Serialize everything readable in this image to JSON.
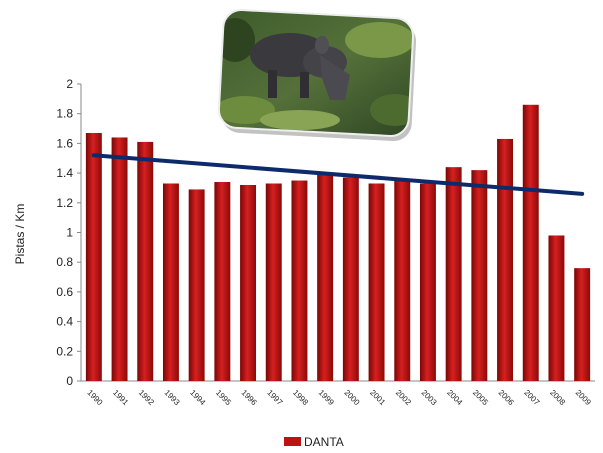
{
  "chart_data": {
    "type": "bar",
    "title": "",
    "xlabel": "",
    "ylabel": "Pistas / Km",
    "ylim": [
      0,
      2
    ],
    "y_ticks": [
      "0",
      "0.2",
      "0.4",
      "0.6",
      "0.8",
      "1",
      "1.2",
      "1.4",
      "1.6",
      "1.8",
      "2"
    ],
    "grid": false,
    "legend_position": "bottom",
    "categories": [
      "1990",
      "1991",
      "1992",
      "1993",
      "1994",
      "1995",
      "1996",
      "1997",
      "1998",
      "1999",
      "2000",
      "2001",
      "2002",
      "2003",
      "2004",
      "2005",
      "2006",
      "2007",
      "2008",
      "2009"
    ],
    "series": [
      {
        "name": "DANTA",
        "color": "#b81414",
        "values": [
          1.67,
          1.64,
          1.61,
          1.33,
          1.29,
          1.34,
          1.32,
          1.33,
          1.35,
          1.39,
          1.37,
          1.33,
          1.35,
          1.33,
          1.44,
          1.42,
          1.63,
          1.86,
          0.98,
          0.76
        ]
      }
    ],
    "trendline": {
      "type": "linear",
      "color": "#0d2a6b",
      "start_value": 1.52,
      "end_value": 1.26
    },
    "inset_image": "tapir-photo"
  }
}
